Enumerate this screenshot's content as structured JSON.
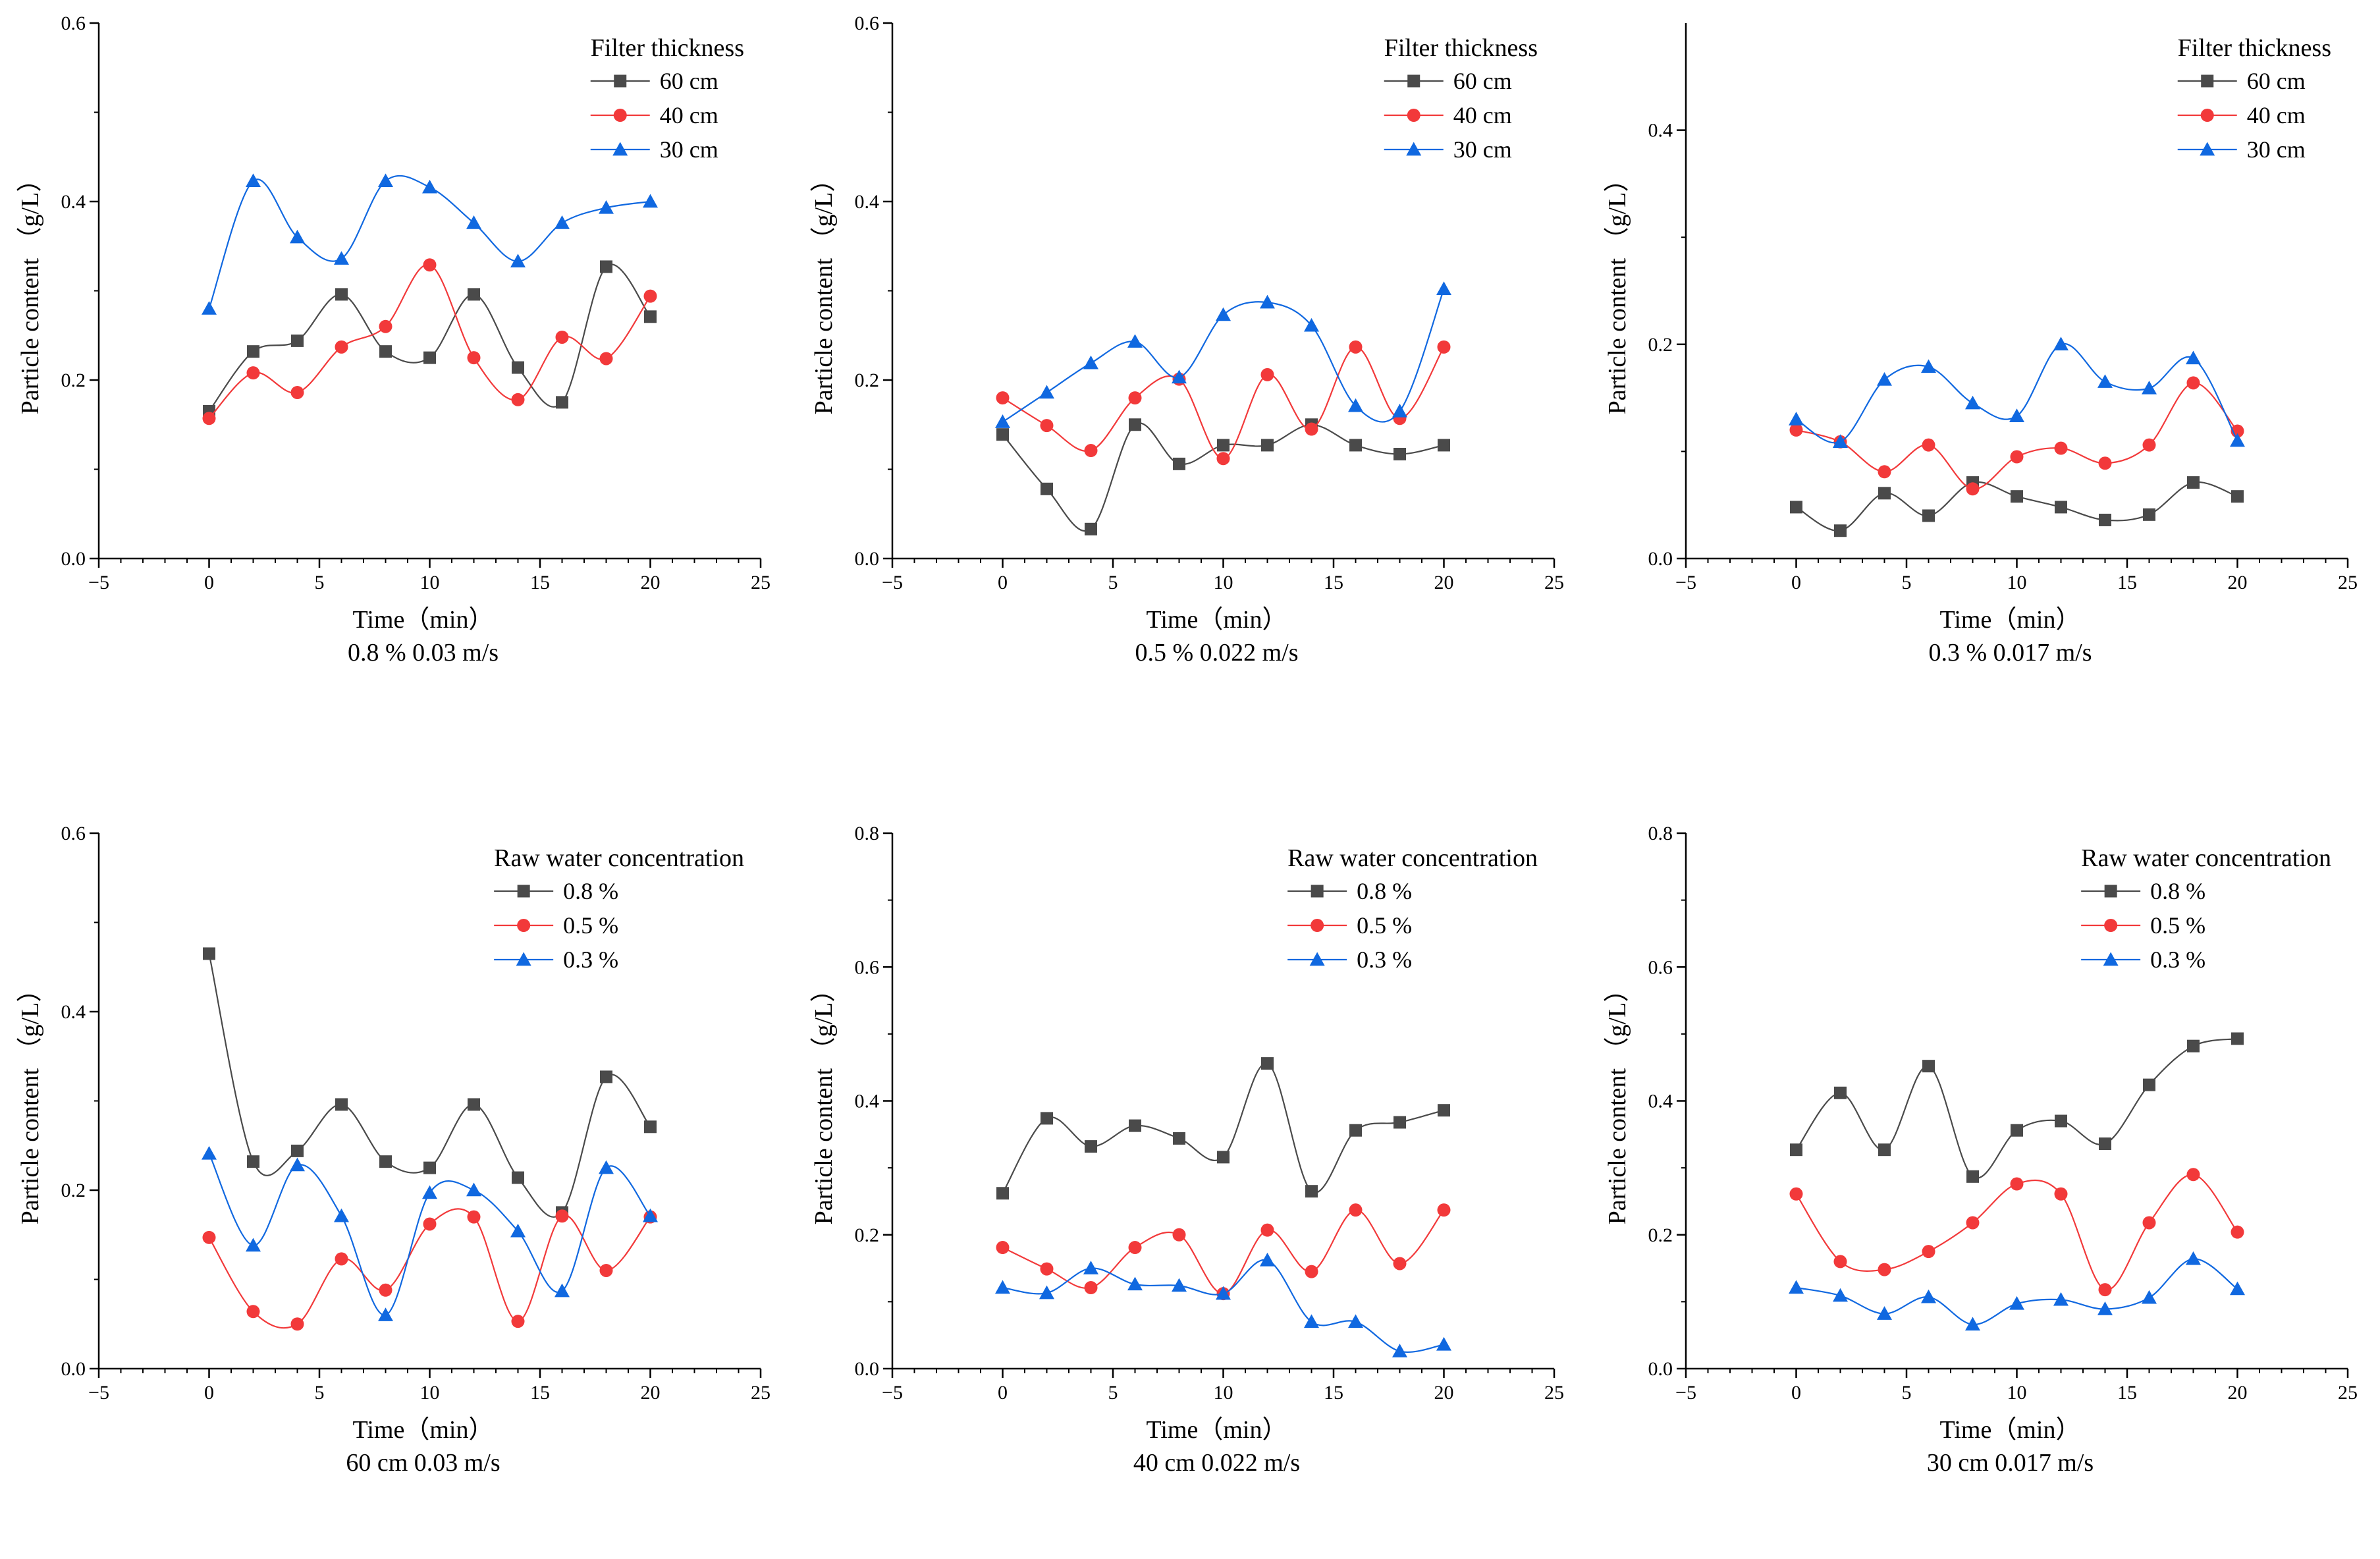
{
  "colors": {
    "black": "#4a4a4a",
    "red": "#f2393a",
    "blue": "#1068e0"
  },
  "chart_data": [
    {
      "type": "line",
      "caption": "0.8 %  0.03 m/s",
      "xlabel": "Time（min）",
      "ylabel": "Particle content （g/L）",
      "xlim": [
        -5,
        25
      ],
      "xticks": [
        -5,
        0,
        5,
        10,
        15,
        20,
        25
      ],
      "ylim": [
        0,
        0.6
      ],
      "yticks": [
        0.0,
        0.2,
        0.4,
        0.6
      ],
      "legend_title": "Filter thickness",
      "legend_position": "top-right",
      "x": [
        0,
        2,
        4,
        6,
        8,
        10,
        12,
        14,
        16,
        18,
        20
      ],
      "series": [
        {
          "name": "60 cm",
          "marker": "square",
          "color": "#4a4a4a",
          "values": [
            0.165,
            0.232,
            0.244,
            0.296,
            0.232,
            0.225,
            0.296,
            0.214,
            0.175,
            0.327,
            0.271
          ]
        },
        {
          "name": "40 cm",
          "marker": "circle",
          "color": "#f2393a",
          "values": [
            0.157,
            0.208,
            0.186,
            0.237,
            0.26,
            0.329,
            0.225,
            0.178,
            0.248,
            0.224,
            0.294
          ]
        },
        {
          "name": "30 cm",
          "marker": "triangle",
          "color": "#1068e0",
          "values": [
            0.28,
            0.423,
            0.36,
            0.336,
            0.423,
            0.416,
            0.376,
            0.333,
            0.376,
            0.393,
            0.4
          ]
        }
      ]
    },
    {
      "type": "line",
      "caption": "0.5 %  0.022 m/s",
      "xlabel": "Time（min）",
      "ylabel": "Particle content （g/L）",
      "xlim": [
        -5,
        25
      ],
      "xticks": [
        -5,
        0,
        5,
        10,
        15,
        20,
        25
      ],
      "ylim": [
        0,
        0.6
      ],
      "yticks": [
        0.0,
        0.2,
        0.4,
        0.6
      ],
      "legend_title": "Filter thickness",
      "legend_position": "top-right",
      "x": [
        0,
        2,
        4,
        6,
        8,
        10,
        12,
        14,
        16,
        18,
        20
      ],
      "series": [
        {
          "name": "60 cm",
          "marker": "square",
          "color": "#4a4a4a",
          "values": [
            0.139,
            0.078,
            0.033,
            0.15,
            0.106,
            0.127,
            0.127,
            0.15,
            0.127,
            0.117,
            0.127
          ]
        },
        {
          "name": "40 cm",
          "marker": "circle",
          "color": "#f2393a",
          "values": [
            0.18,
            0.149,
            0.121,
            0.18,
            0.201,
            0.112,
            0.206,
            0.145,
            0.237,
            0.157,
            0.237
          ]
        },
        {
          "name": "30 cm",
          "marker": "triangle",
          "color": "#1068e0",
          "values": [
            0.153,
            0.186,
            0.219,
            0.243,
            0.203,
            0.273,
            0.287,
            0.261,
            0.171,
            0.165,
            0.302
          ]
        }
      ]
    },
    {
      "type": "line",
      "caption": "0.3 %  0.017 m/s",
      "xlabel": "Time（min）",
      "ylabel": "Particle content （g/L）",
      "xlim": [
        -5,
        25
      ],
      "xticks": [
        -5,
        0,
        5,
        10,
        15,
        20,
        25
      ],
      "ylim": [
        0,
        0.5
      ],
      "yticks": [
        0.0,
        0.2,
        0.4
      ],
      "legend_title": "Filter thickness",
      "legend_position": "top-right",
      "x": [
        0,
        2,
        4,
        6,
        8,
        10,
        12,
        14,
        16,
        18,
        20
      ],
      "series": [
        {
          "name": "60 cm",
          "marker": "square",
          "color": "#4a4a4a",
          "values": [
            0.048,
            0.026,
            0.061,
            0.04,
            0.071,
            0.058,
            0.048,
            0.036,
            0.041,
            0.071,
            0.058
          ]
        },
        {
          "name": "40 cm",
          "marker": "circle",
          "color": "#f2393a",
          "values": [
            0.12,
            0.109,
            0.081,
            0.106,
            0.065,
            0.095,
            0.103,
            0.089,
            0.106,
            0.164,
            0.119
          ]
        },
        {
          "name": "30 cm",
          "marker": "triangle",
          "color": "#1068e0",
          "values": [
            0.13,
            0.109,
            0.167,
            0.179,
            0.145,
            0.133,
            0.2,
            0.165,
            0.159,
            0.187,
            0.11
          ]
        }
      ]
    },
    {
      "type": "line",
      "caption": "60 cm  0.03 m/s",
      "xlabel": "Time（min）",
      "ylabel": "Particle content （g/L）",
      "xlim": [
        -5,
        25
      ],
      "xticks": [
        -5,
        0,
        5,
        10,
        15,
        20,
        25
      ],
      "ylim": [
        0,
        0.6
      ],
      "yticks": [
        0.0,
        0.2,
        0.4,
        0.6
      ],
      "legend_title": "Raw water concentration",
      "legend_position": "top-right",
      "x": [
        0,
        2,
        4,
        6,
        8,
        10,
        12,
        14,
        16,
        18,
        20
      ],
      "series": [
        {
          "name": "0.8 %",
          "marker": "square",
          "color": "#4a4a4a",
          "values": [
            0.465,
            0.232,
            0.244,
            0.296,
            0.232,
            0.225,
            0.296,
            0.214,
            0.175,
            0.327,
            0.271
          ]
        },
        {
          "name": "0.5 %",
          "marker": "circle",
          "color": "#f2393a",
          "values": [
            0.147,
            0.064,
            0.05,
            0.123,
            0.088,
            0.162,
            0.17,
            0.053,
            0.171,
            0.11,
            0.17
          ]
        },
        {
          "name": "0.3 %",
          "marker": "triangle",
          "color": "#1068e0",
          "values": [
            0.241,
            0.138,
            0.228,
            0.171,
            0.06,
            0.197,
            0.2,
            0.154,
            0.087,
            0.225,
            0.171
          ]
        }
      ]
    },
    {
      "type": "line",
      "caption": "40 cm  0.022 m/s",
      "xlabel": "Time（min）",
      "ylabel": "Particle content （g/L）",
      "xlim": [
        -5,
        25
      ],
      "xticks": [
        -5,
        0,
        5,
        10,
        15,
        20,
        25
      ],
      "ylim": [
        0,
        0.8
      ],
      "yticks": [
        0.0,
        0.2,
        0.4,
        0.6,
        0.8
      ],
      "legend_title": "Raw water concentration",
      "legend_position": "top-right",
      "x": [
        0,
        2,
        4,
        6,
        8,
        10,
        12,
        14,
        16,
        18,
        20
      ],
      "series": [
        {
          "name": "0.8 %",
          "marker": "square",
          "color": "#4a4a4a",
          "values": [
            0.262,
            0.374,
            0.332,
            0.363,
            0.344,
            0.316,
            0.456,
            0.265,
            0.356,
            0.368,
            0.386
          ]
        },
        {
          "name": "0.5 %",
          "marker": "circle",
          "color": "#f2393a",
          "values": [
            0.181,
            0.149,
            0.121,
            0.181,
            0.2,
            0.112,
            0.207,
            0.145,
            0.237,
            0.157,
            0.237
          ]
        },
        {
          "name": "0.3 %",
          "marker": "triangle",
          "color": "#1068e0",
          "values": [
            0.121,
            0.113,
            0.15,
            0.126,
            0.124,
            0.112,
            0.162,
            0.07,
            0.07,
            0.026,
            0.036
          ]
        }
      ]
    },
    {
      "type": "line",
      "caption": "30 cm  0.017 m/s",
      "xlabel": "Time（min）",
      "ylabel": "Particle content （g/L）",
      "xlim": [
        -5,
        25
      ],
      "xticks": [
        -5,
        0,
        5,
        10,
        15,
        20,
        25
      ],
      "ylim": [
        0,
        0.8
      ],
      "yticks": [
        0.0,
        0.2,
        0.4,
        0.6,
        0.8
      ],
      "legend_title": "Raw water concentration",
      "legend_position": "top-right",
      "x": [
        0,
        2,
        4,
        6,
        8,
        10,
        12,
        14,
        16,
        18,
        20
      ],
      "series": [
        {
          "name": "0.8 %",
          "marker": "square",
          "color": "#4a4a4a",
          "values": [
            0.327,
            0.412,
            0.327,
            0.452,
            0.287,
            0.356,
            0.37,
            0.336,
            0.424,
            0.482,
            0.493
          ]
        },
        {
          "name": "0.5 %",
          "marker": "circle",
          "color": "#f2393a",
          "values": [
            0.261,
            0.16,
            0.148,
            0.175,
            0.218,
            0.276,
            0.261,
            0.118,
            0.218,
            0.29,
            0.204
          ]
        },
        {
          "name": "0.3 %",
          "marker": "triangle",
          "color": "#1068e0",
          "values": [
            0.121,
            0.109,
            0.082,
            0.107,
            0.066,
            0.097,
            0.103,
            0.089,
            0.106,
            0.164,
            0.119
          ]
        }
      ]
    }
  ]
}
